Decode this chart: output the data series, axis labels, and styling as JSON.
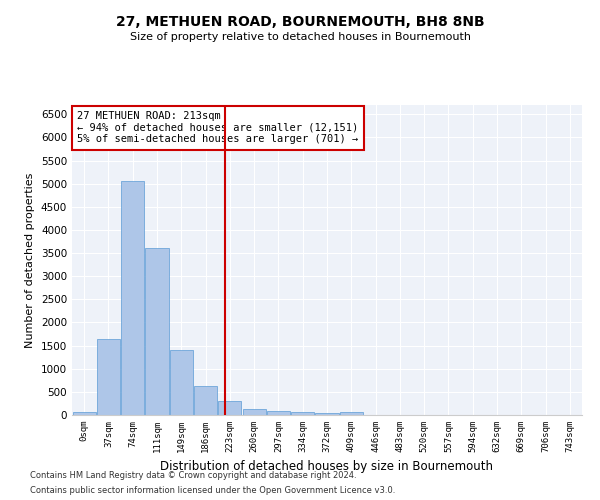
{
  "title": "27, METHUEN ROAD, BOURNEMOUTH, BH8 8NB",
  "subtitle": "Size of property relative to detached houses in Bournemouth",
  "xlabel": "Distribution of detached houses by size in Bournemouth",
  "ylabel": "Number of detached properties",
  "bar_color": "#aec6e8",
  "bar_edge_color": "#5b9bd5",
  "categories": [
    "0sqm",
    "37sqm",
    "74sqm",
    "111sqm",
    "149sqm",
    "186sqm",
    "223sqm",
    "260sqm",
    "297sqm",
    "334sqm",
    "372sqm",
    "409sqm",
    "446sqm",
    "483sqm",
    "520sqm",
    "557sqm",
    "594sqm",
    "632sqm",
    "669sqm",
    "706sqm",
    "743sqm"
  ],
  "values": [
    70,
    1650,
    5050,
    3600,
    1400,
    620,
    310,
    135,
    95,
    55,
    40,
    55,
    10,
    5,
    3,
    3,
    2,
    1,
    1,
    1,
    1
  ],
  "vline_x": 5.81,
  "vline_color": "#cc0000",
  "ylim": [
    0,
    6700
  ],
  "annotation_text": "27 METHUEN ROAD: 213sqm\n← 94% of detached houses are smaller (12,151)\n5% of semi-detached houses are larger (701) →",
  "footnote1": "Contains HM Land Registry data © Crown copyright and database right 2024.",
  "footnote2": "Contains public sector information licensed under the Open Government Licence v3.0.",
  "background_color": "#eef2f9"
}
